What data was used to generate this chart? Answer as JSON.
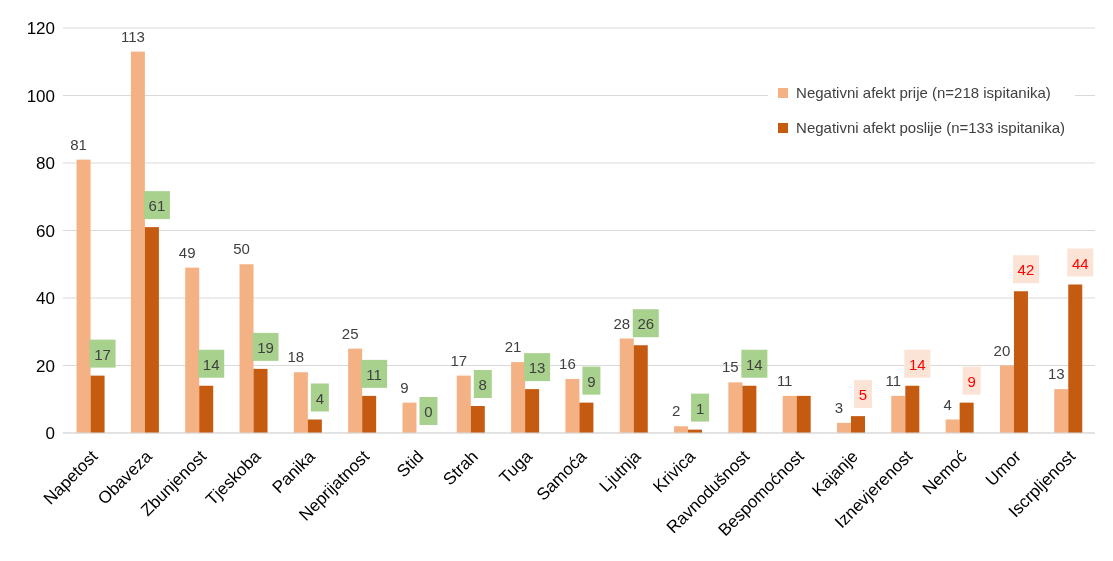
{
  "chart_data": {
    "type": "bar",
    "categories": [
      "Napetost",
      "Obaveza",
      "Zbunjenost",
      "Tjeskoba",
      "Panika",
      "Neprijatnost",
      "Stid",
      "Strah",
      "Tuga",
      "Samoća",
      "Ljutnja",
      "Krivica",
      "Ravnodušnost",
      "Bespomoćnost",
      "Kajanje",
      "Iznevjerenost",
      "Nemoć",
      "Umor",
      "Iscrpljenost"
    ],
    "series": [
      {
        "name": "Negativni afekt prije (n=218 ispitanika)",
        "color": "#f4b183",
        "values": [
          81,
          113,
          49,
          50,
          18,
          25,
          9,
          17,
          21,
          16,
          28,
          2,
          15,
          11,
          3,
          11,
          4,
          20,
          13
        ],
        "value_labels": [
          "81",
          "113",
          "49",
          "50",
          "18",
          "25",
          "9",
          "17",
          "21",
          "16",
          "28",
          "2",
          "15",
          "11",
          "3",
          "11",
          "4",
          "20",
          "13"
        ]
      },
      {
        "name": "Negativni afekt poslije (n=133 ispitanika)",
        "color": "#c55a11",
        "values": [
          17,
          61,
          14,
          19,
          4,
          11,
          0,
          8,
          13,
          9,
          26,
          1,
          14,
          11,
          5,
          14,
          9,
          42,
          44
        ],
        "value_labels": [
          "17",
          "61",
          "14",
          "19",
          "4",
          "11",
          "0",
          "8",
          "13",
          "9",
          "26",
          "1",
          "14",
          null,
          "5",
          "14",
          "9",
          "42",
          "44"
        ]
      }
    ],
    "ylim": [
      0,
      120
    ],
    "yticks": [
      0,
      20,
      40,
      60,
      80,
      100,
      120
    ],
    "grid": "y",
    "legend": "top right"
  }
}
